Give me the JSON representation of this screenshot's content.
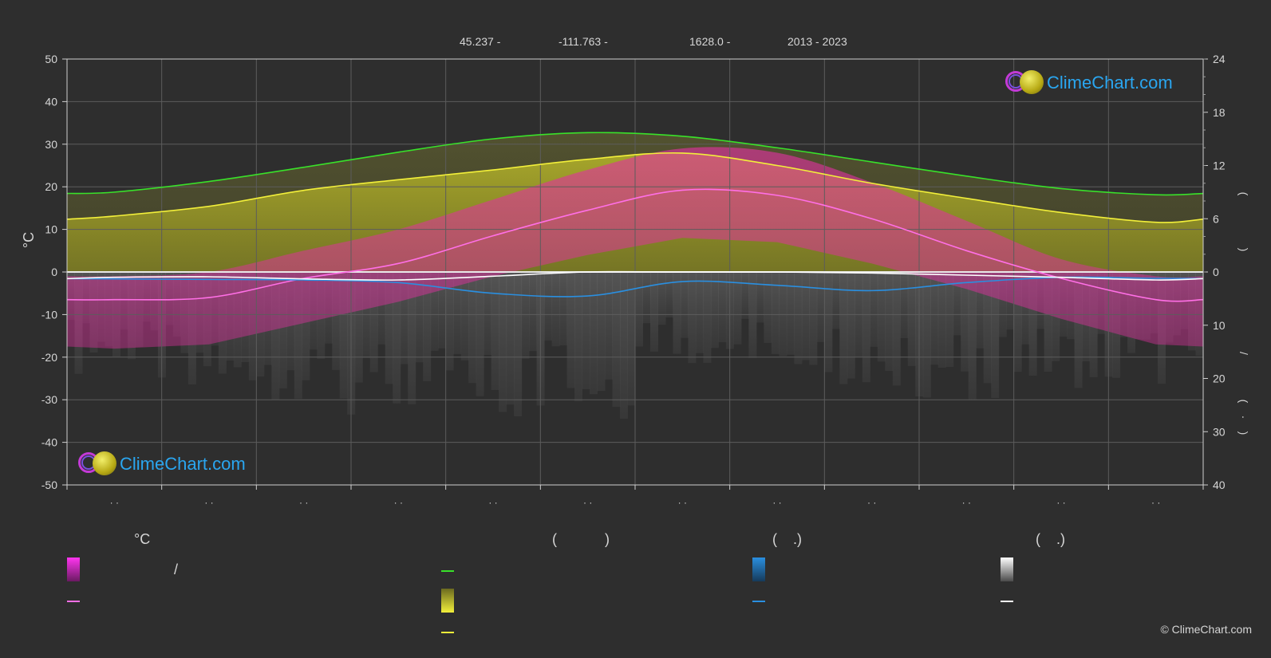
{
  "header": {
    "items": [
      "45.237 -",
      "-111.763 -",
      "1628.0 -",
      "2013 - 2023"
    ]
  },
  "axes": {
    "left_title": "°C",
    "left_ticks": [
      "50",
      "40",
      "30",
      "20",
      "10",
      "0",
      "-10",
      "-20",
      "-30",
      "-40",
      "-50"
    ],
    "right_top_ticks": [
      "24",
      "18",
      "12",
      "6",
      "0"
    ],
    "right_bottom_ticks": [
      "10",
      "20",
      "30",
      "40"
    ],
    "right_title_marks": [
      "(",
      ")",
      "(",
      ")",
      "/",
      "(",
      "·",
      ")"
    ],
    "month_labels": [
      "· ·",
      "· ·",
      "· ·",
      "· ·",
      "· ·",
      "· ·",
      "· ·",
      "· ·",
      "· ·",
      "· ·",
      "· ·",
      "· ·"
    ]
  },
  "legend": {
    "col1_title": "°C",
    "col2_title": "(            )",
    "col3_title": "(    .)",
    "col4_title": "(    .)",
    "slash": "/"
  },
  "logo_text": "ClimeChart.com",
  "copyright": "© ClimeChart.com",
  "colors": {
    "background": "#2e2e2e",
    "daylight": "#39e12a",
    "sunshine": "#f2ef3a",
    "avg_temp": "#ff6fe6",
    "rain": "#2a8fe0",
    "snow": "#ffffff",
    "temp_fill": "#e0309f",
    "sun_fill": "#b6b52a",
    "grid": "#5c5c5c"
  },
  "chart_data": {
    "type": "line",
    "x_unit": "month",
    "x": [
      0.5,
      1.5,
      2.5,
      3.5,
      4.5,
      5.5,
      6.5,
      7.5,
      8.5,
      9.5,
      10.5,
      11.5
    ],
    "ylim_left": [
      -50,
      50
    ],
    "ylim_right_top": [
      0,
      24
    ],
    "ylim_right_bottom": [
      0,
      40
    ],
    "grid": true,
    "series": [
      {
        "key": "daylight",
        "axis": "right_top",
        "values": [
          9.0,
          10.2,
          11.8,
          13.5,
          15.0,
          15.7,
          15.3,
          14.0,
          12.4,
          10.8,
          9.4,
          8.7
        ]
      },
      {
        "key": "sunshine",
        "axis": "right_top",
        "values": [
          6.3,
          7.4,
          9.2,
          10.4,
          11.5,
          12.7,
          13.4,
          12.0,
          10.0,
          8.3,
          6.7,
          5.6
        ]
      },
      {
        "key": "avg_temp",
        "axis": "left",
        "values": [
          -6.5,
          -6.0,
          -1.5,
          2.0,
          8.5,
          14.5,
          19.2,
          18.0,
          12.5,
          5.0,
          -1.5,
          -6.5
        ]
      },
      {
        "key": "rain",
        "axis": "right_bottom",
        "values": [
          1.3,
          1.4,
          1.5,
          2.0,
          4.0,
          4.5,
          1.8,
          2.5,
          3.5,
          2.0,
          1.0,
          1.2
        ]
      },
      {
        "key": "snow",
        "axis": "right_bottom",
        "values": [
          1.0,
          0.9,
          1.3,
          1.5,
          0.8,
          0.0,
          0.0,
          0.0,
          0.2,
          0.6,
          1.0,
          1.5
        ]
      }
    ],
    "bands": {
      "temp_max_mean": [
        -1,
        0,
        5,
        10,
        17,
        24,
        29,
        28,
        21,
        12,
        3,
        -1
      ],
      "temp_min_mean": [
        -18,
        -17,
        -12,
        -7,
        -1,
        4,
        8,
        7,
        2,
        -4,
        -11,
        -17
      ],
      "sunshine_daily": [
        6.3,
        7.4,
        9.2,
        10.4,
        11.5,
        12.7,
        13.4,
        12.0,
        10.0,
        8.3,
        6.7,
        5.6
      ],
      "daylight_daily": [
        9.0,
        10.2,
        11.8,
        13.5,
        15.0,
        15.7,
        15.3,
        14.0,
        12.4,
        10.8,
        9.4,
        8.7
      ],
      "precip_spikes": [
        20,
        22,
        24,
        28,
        30,
        28,
        18,
        18,
        22,
        24,
        22,
        22
      ]
    }
  }
}
